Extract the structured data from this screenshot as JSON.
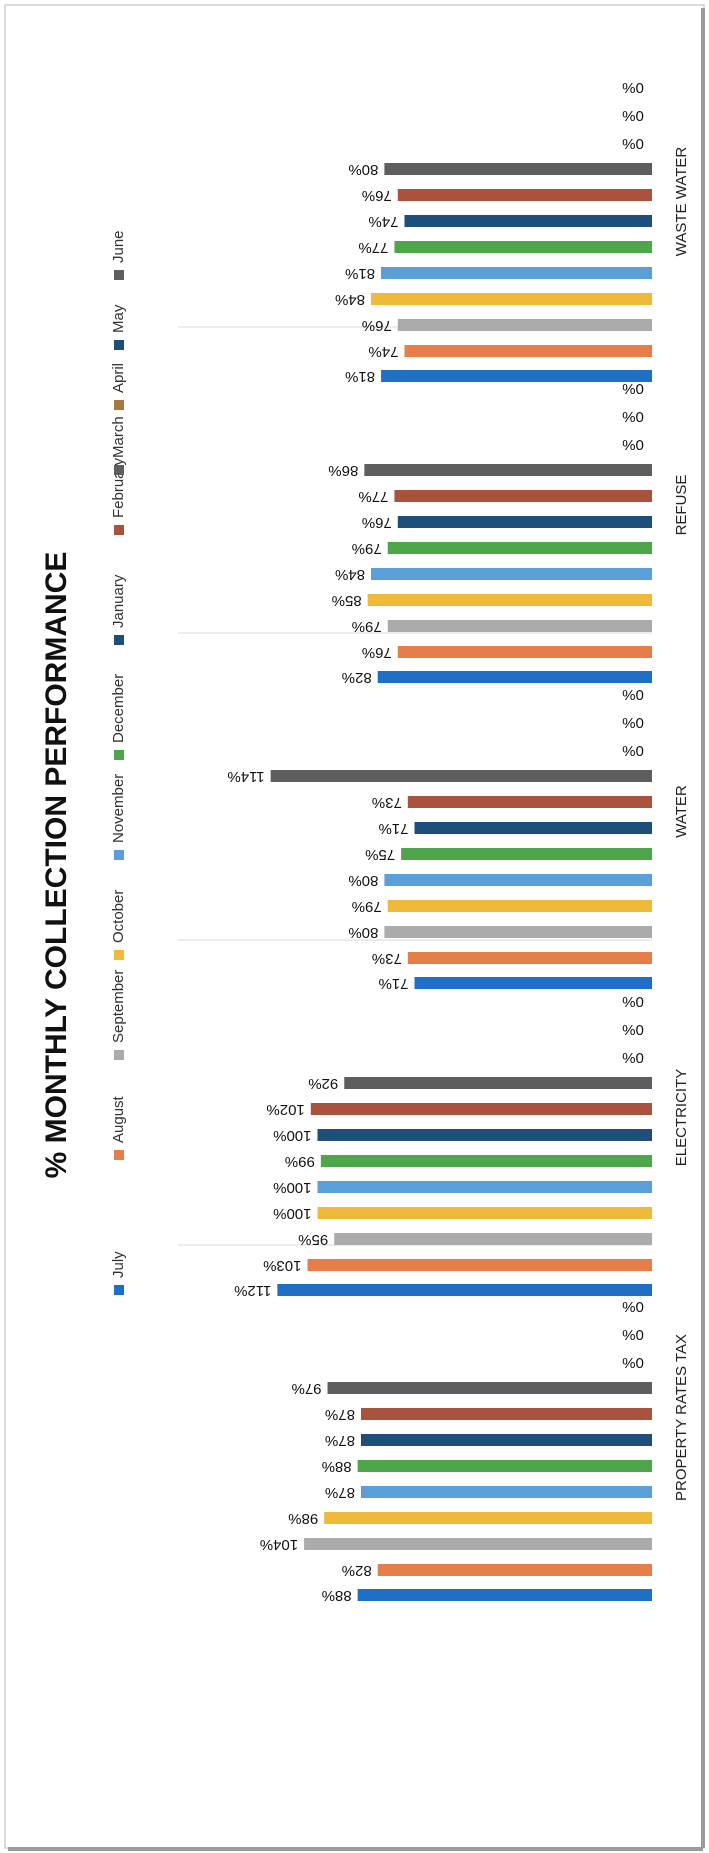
{
  "chart_data": {
    "type": "bar",
    "title": "% MONTHLY COLLECTION PERFORMANCE",
    "orientation": "horizontal",
    "categories": [
      "WASTE WATER",
      "REFUSE",
      "WATER",
      "ELECTRICITY",
      "PROPERTY RATES TAX"
    ],
    "series": [
      {
        "name": "July",
        "color": "#1F6FC5",
        "values": [
          81,
          82,
          71,
          112,
          88
        ]
      },
      {
        "name": "August",
        "color": "#E67E4A",
        "values": [
          74,
          76,
          73,
          103,
          82
        ]
      },
      {
        "name": "September",
        "color": "#ABABAB",
        "values": [
          76,
          79,
          80,
          95,
          104
        ]
      },
      {
        "name": "October",
        "color": "#EFB93A",
        "values": [
          84,
          85,
          79,
          100,
          98
        ]
      },
      {
        "name": "November",
        "color": "#5A9FD8",
        "values": [
          81,
          84,
          80,
          100,
          87
        ]
      },
      {
        "name": "December",
        "color": "#4EA64A",
        "values": [
          77,
          79,
          75,
          99,
          88
        ]
      },
      {
        "name": "January",
        "color": "#1E4F7A",
        "values": [
          74,
          76,
          71,
          100,
          87
        ]
      },
      {
        "name": "February",
        "color": "#A9533E",
        "values": [
          76,
          77,
          73,
          102,
          87
        ]
      },
      {
        "name": "March",
        "color": "#5E5E5E",
        "values": [
          80,
          86,
          114,
          92,
          97
        ]
      },
      {
        "name": "April",
        "color": "#A87A3E",
        "values": [
          0,
          0,
          0,
          0,
          0
        ]
      },
      {
        "name": "May",
        "color": "#1E4F7A",
        "values": [
          0,
          0,
          0,
          0,
          0
        ]
      },
      {
        "name": "June",
        "color": "#5E5E5E",
        "values": [
          0,
          0,
          0,
          0,
          0
        ]
      }
    ],
    "value_suffix": "%",
    "legend": "left side, rotated",
    "grid": false
  }
}
